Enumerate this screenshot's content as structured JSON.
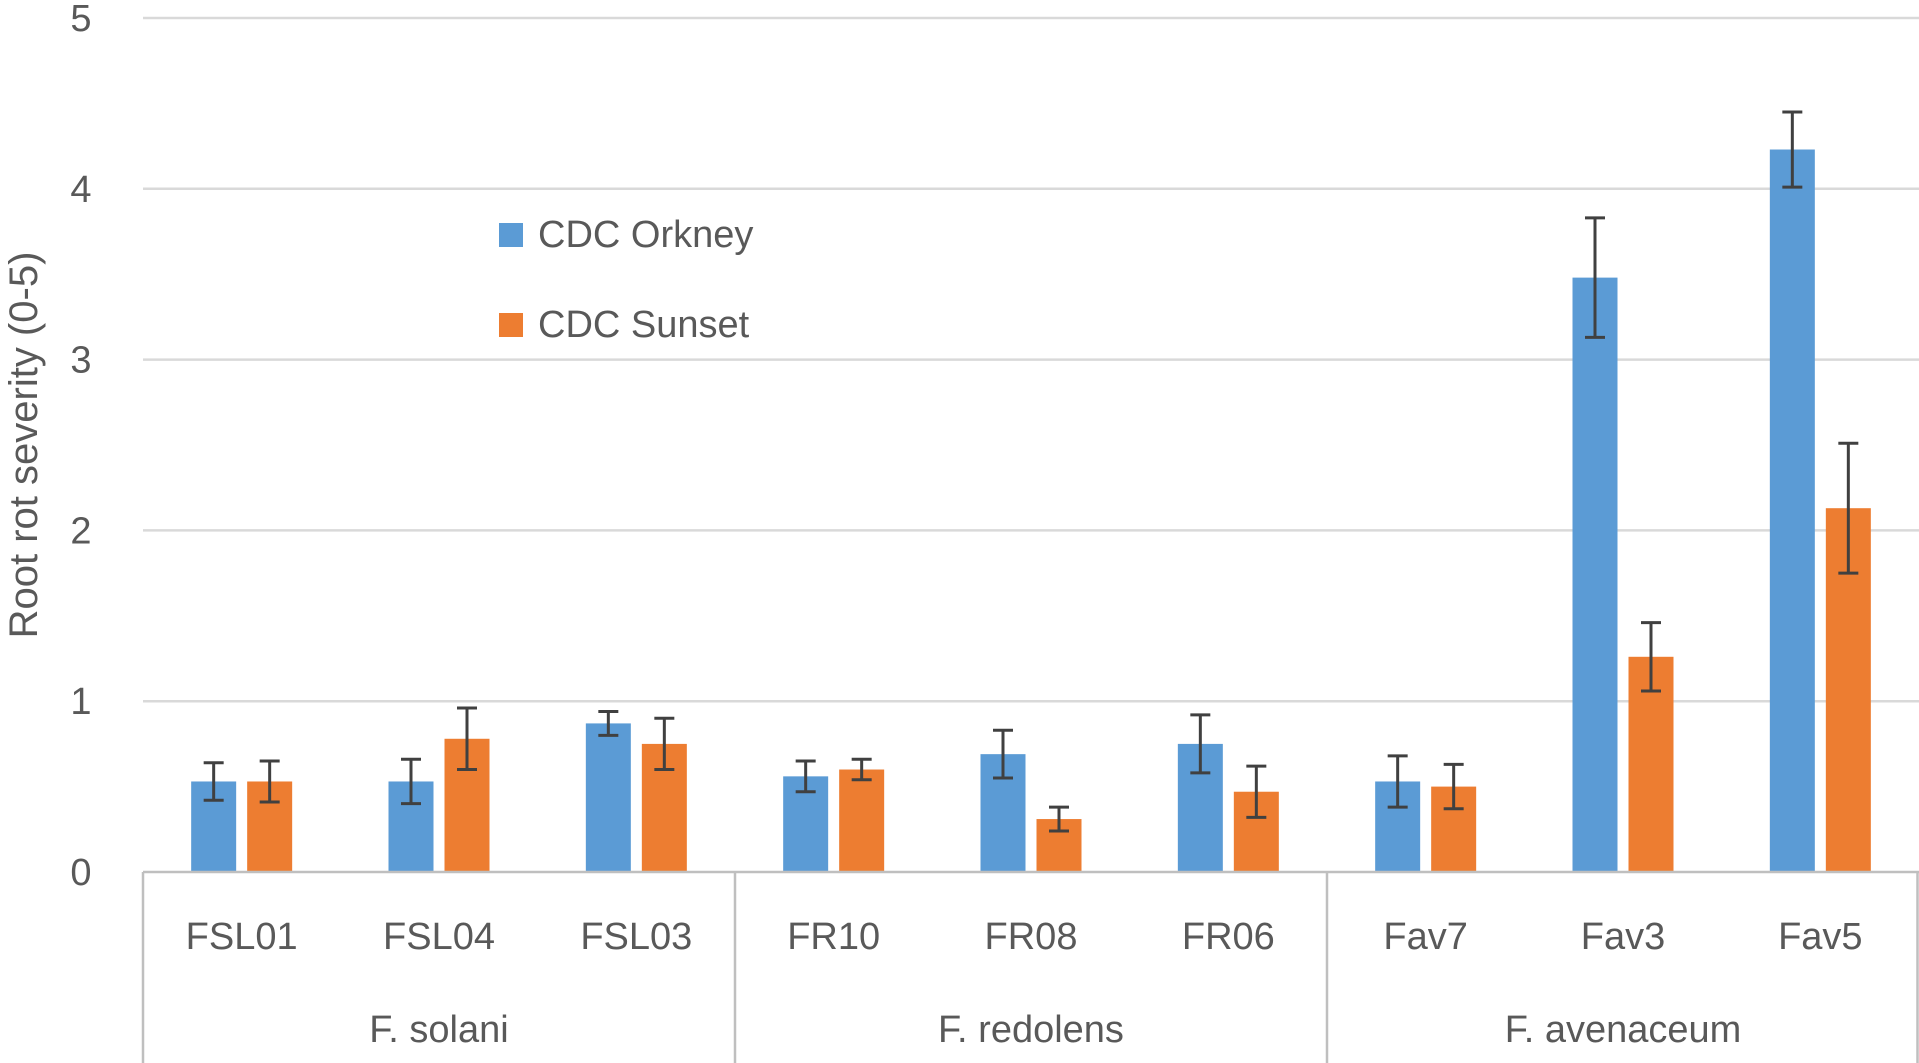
{
  "chart_data": {
    "type": "bar",
    "title": "",
    "ylabel": "Root rot severity (0-5)",
    "xlabel": "",
    "ylim": [
      0,
      5
    ],
    "yticks": [
      0,
      1,
      2,
      3,
      4,
      5
    ],
    "grid": true,
    "legend_position": "upper-left-inside",
    "categories": [
      "FSL01",
      "FSL04",
      "FSL03",
      "FR10",
      "FR08",
      "FR06",
      "Fav7",
      "Fav3",
      "Fav5"
    ],
    "groups": [
      {
        "label": "F. solani",
        "categories": [
          "FSL01",
          "FSL04",
          "FSL03"
        ]
      },
      {
        "label": "F. redolens",
        "categories": [
          "FR10",
          "FR08",
          "FR06"
        ]
      },
      {
        "label": "F. avenaceum",
        "categories": [
          "Fav7",
          "Fav3",
          "Fav5"
        ]
      }
    ],
    "series": [
      {
        "name": "CDC Orkney",
        "color": "#5b9bd5",
        "values": [
          0.53,
          0.53,
          0.87,
          0.56,
          0.69,
          0.75,
          0.53,
          3.48,
          4.23
        ],
        "errors": [
          0.11,
          0.13,
          0.07,
          0.09,
          0.14,
          0.17,
          0.15,
          0.35,
          0.22
        ]
      },
      {
        "name": "CDC Sunset",
        "color": "#ed7d31",
        "values": [
          0.53,
          0.78,
          0.75,
          0.6,
          0.31,
          0.47,
          0.5,
          1.26,
          2.13
        ],
        "errors": [
          0.12,
          0.18,
          0.15,
          0.06,
          0.07,
          0.15,
          0.13,
          0.2,
          0.38
        ]
      }
    ]
  }
}
